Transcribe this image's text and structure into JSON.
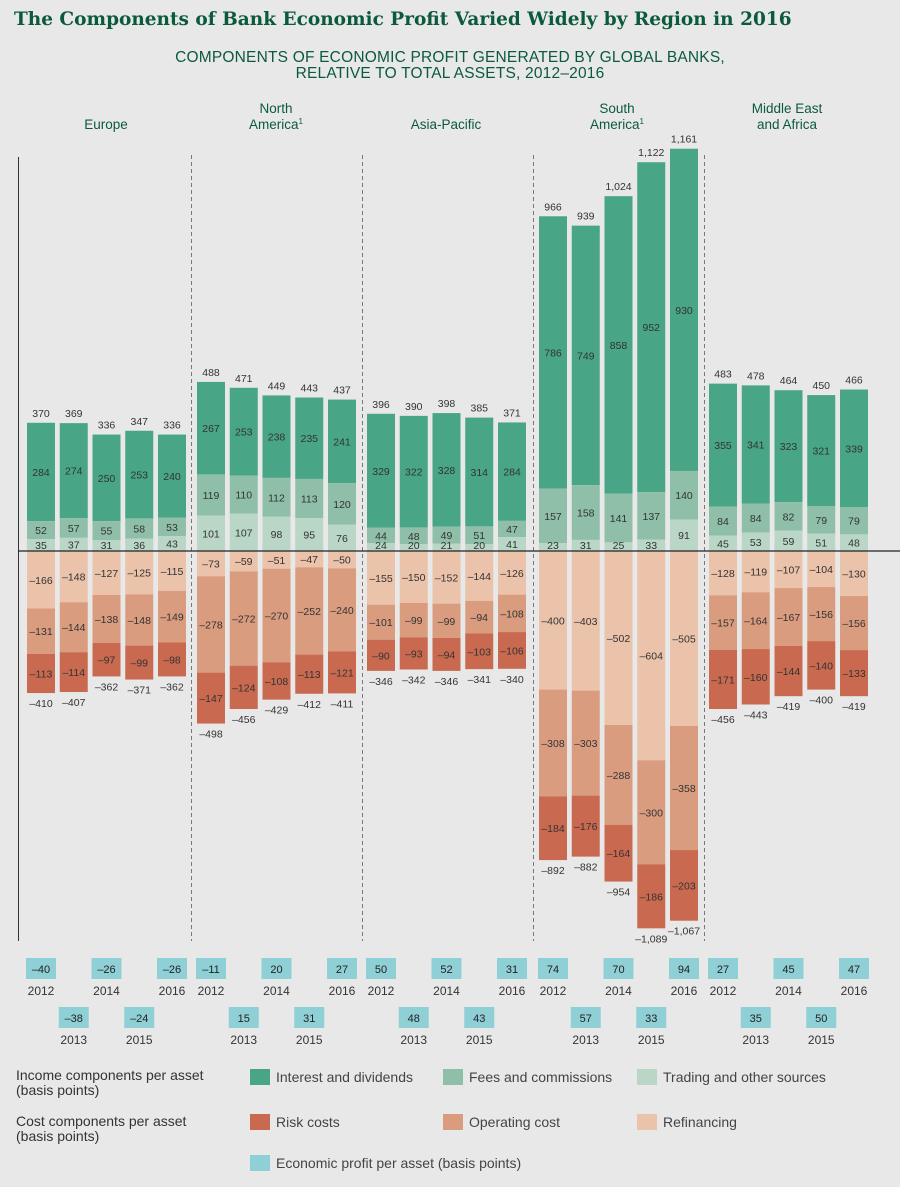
{
  "title": "The Components of Bank Economic Profit Varied Widely by Region in 2016",
  "subtitle_line1": "COMPONENTS OF ECONOMIC PROFIT GENERATED BY GLOBAL BANKS,",
  "subtitle_line2": "RELATIVE TO TOTAL ASSETS, 2012–2016",
  "colors": {
    "interest": "#48a586",
    "fees": "#8fbfa9",
    "trading": "#b9d6c6",
    "risk": "#c96a50",
    "operating": "#da9c7f",
    "refinancing": "#ebc2aa",
    "profit": "#8fcfd6"
  },
  "chart_data": {
    "type": "bar",
    "stacked": true,
    "unit": "basis points",
    "years": [
      "2012",
      "2013",
      "2014",
      "2015",
      "2016"
    ],
    "regions": [
      {
        "label_line1": "Europe",
        "label_line2": "",
        "footnote": "",
        "interest": [
          284,
          274,
          250,
          253,
          240
        ],
        "fees": [
          52,
          57,
          55,
          58,
          53
        ],
        "trading": [
          35,
          37,
          31,
          36,
          43
        ],
        "income_total": [
          370,
          369,
          336,
          347,
          336
        ],
        "refinancing": [
          -166,
          -148,
          -127,
          -125,
          -115
        ],
        "operating": [
          -131,
          -144,
          -138,
          -148,
          -149
        ],
        "risk": [
          -113,
          -114,
          -97,
          -99,
          -98
        ],
        "cost_total": [
          -410,
          -407,
          -362,
          -371,
          -362
        ],
        "profit": [
          -40,
          -38,
          -26,
          -24,
          -26
        ]
      },
      {
        "label_line1": "North",
        "label_line2": "America",
        "footnote": "1",
        "interest": [
          267,
          253,
          238,
          235,
          241
        ],
        "fees": [
          119,
          110,
          112,
          113,
          120
        ],
        "trading": [
          101,
          107,
          98,
          95,
          76
        ],
        "income_total": [
          488,
          471,
          449,
          443,
          437
        ],
        "refinancing": [
          -73,
          -59,
          -51,
          -47,
          -50
        ],
        "operating": [
          -278,
          -272,
          -270,
          -252,
          -240
        ],
        "risk": [
          -147,
          -124,
          -108,
          -113,
          -121
        ],
        "cost_total": [
          -498,
          -456,
          -429,
          -412,
          -411
        ],
        "profit": [
          -11,
          15,
          20,
          31,
          27
        ]
      },
      {
        "label_line1": "Asia-Pacific",
        "label_line2": "",
        "footnote": "",
        "interest": [
          329,
          322,
          328,
          314,
          284
        ],
        "fees": [
          44,
          48,
          49,
          51,
          47
        ],
        "trading": [
          24,
          20,
          21,
          20,
          41
        ],
        "income_total": [
          396,
          390,
          398,
          385,
          371
        ],
        "refinancing": [
          -155,
          -150,
          -152,
          -144,
          -126
        ],
        "operating": [
          -101,
          -99,
          -99,
          -94,
          -108
        ],
        "risk": [
          -90,
          -93,
          -94,
          -103,
          -106
        ],
        "cost_total": [
          -346,
          -342,
          -346,
          -341,
          -340
        ],
        "profit": [
          50,
          48,
          52,
          43,
          31
        ]
      },
      {
        "label_line1": "South",
        "label_line2": "America",
        "footnote": "1",
        "interest": [
          786,
          749,
          858,
          952,
          930
        ],
        "fees": [
          157,
          158,
          141,
          137,
          140
        ],
        "trading": [
          23,
          31,
          25,
          33,
          91
        ],
        "income_total": [
          966,
          939,
          1024,
          1122,
          1161
        ],
        "refinancing": [
          -400,
          -403,
          -502,
          -604,
          -505
        ],
        "operating": [
          -308,
          -303,
          -288,
          -300,
          -358
        ],
        "risk": [
          -184,
          -176,
          -164,
          -186,
          -203
        ],
        "cost_total": [
          -892,
          -882,
          -954,
          -1089,
          -1067
        ],
        "profit": [
          74,
          57,
          70,
          33,
          94
        ]
      },
      {
        "label_line1": "Middle East",
        "label_line2": "and Africa",
        "footnote": "",
        "interest": [
          355,
          341,
          323,
          321,
          339
        ],
        "fees": [
          84,
          84,
          82,
          79,
          79
        ],
        "trading": [
          45,
          53,
          59,
          51,
          48
        ],
        "income_total": [
          483,
          478,
          464,
          450,
          466
        ],
        "refinancing": [
          -128,
          -119,
          -107,
          -104,
          -130
        ],
        "operating": [
          -157,
          -164,
          -167,
          -156,
          -156
        ],
        "risk": [
          -171,
          -160,
          -144,
          -140,
          -133
        ],
        "cost_total": [
          -456,
          -443,
          -419,
          -400,
          -419
        ],
        "profit": [
          27,
          35,
          45,
          50,
          47
        ]
      }
    ]
  },
  "legend": {
    "income_label": "Income components per asset\n(basis points)",
    "cost_label": "Cost components per asset\n(basis points)",
    "interest": "Interest and dividends",
    "fees": "Fees and commissions",
    "trading": "Trading and other sources",
    "risk": "Risk costs",
    "operating": "Operating cost",
    "refinancing": "Refinancing",
    "profit": "Economic profit per asset (basis points)"
  }
}
